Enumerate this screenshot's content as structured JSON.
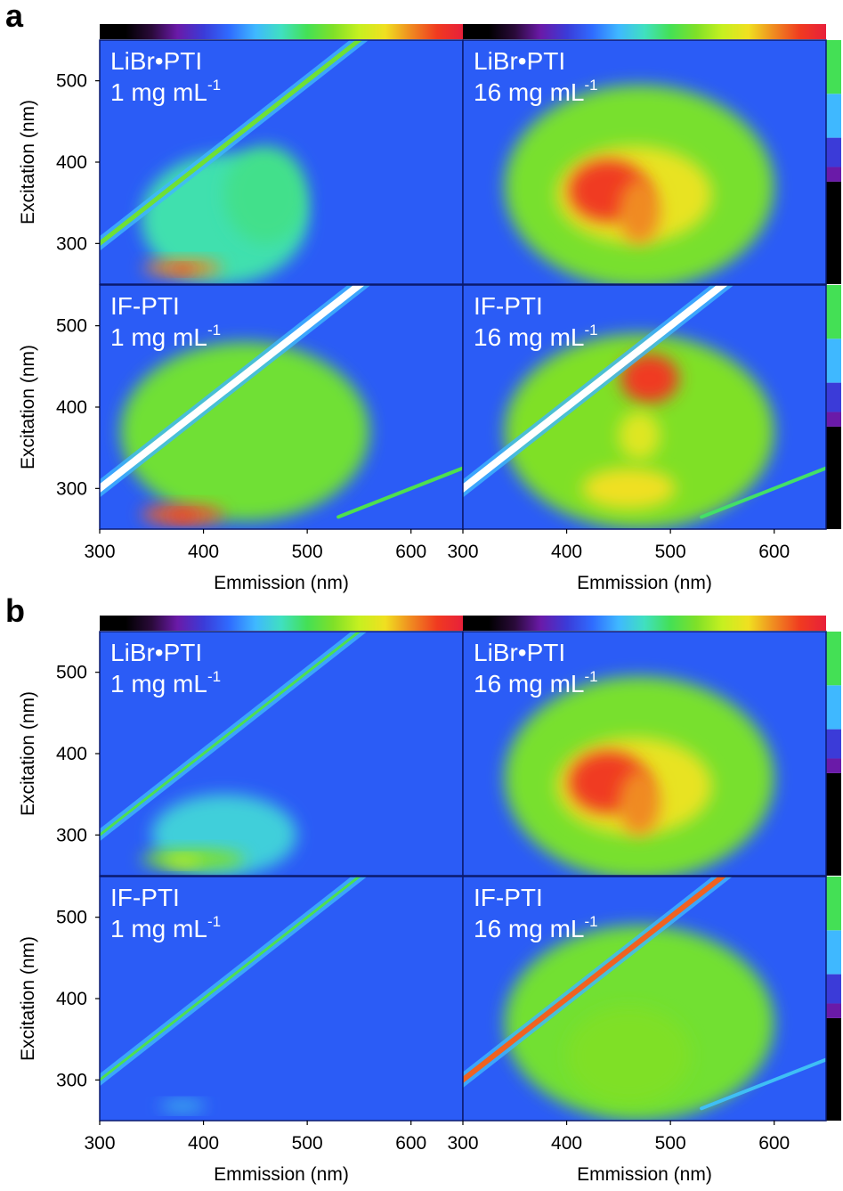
{
  "figure": {
    "colors": {
      "background": "#2b5cf6",
      "colorbar": [
        "#000000",
        "#000000",
        "#2a0a3a",
        "#6a1aa8",
        "#3b3bd8",
        "#2f6cff",
        "#3fb8ff",
        "#40e0c0",
        "#44e055",
        "#7fe028",
        "#c6f020",
        "#f0e020",
        "#f08a20",
        "#f03a20",
        "#e8203a"
      ]
    },
    "panels": [
      {
        "label": "a",
        "chart_data": [
          {
            "type": "heatmap",
            "title": "LiBr•PTI",
            "subtitle": "1 mg mL",
            "subtitle_sup": "-1",
            "xlabel": "",
            "ylabel": "Excitation (nm)",
            "xlim": [
              300,
              650
            ],
            "ylim": [
              250,
              550
            ],
            "xticks": [],
            "yticks": [
              300,
              400,
              500
            ],
            "scatter_line": {
              "intensity": 0.55,
              "width": 9
            },
            "second_order": {
              "intensity": 0.0
            },
            "regions": [
              {
                "cx": 420,
                "cy": 330,
                "rx": 80,
                "ry": 80,
                "intensity": 0.32
              },
              {
                "cx": 460,
                "cy": 360,
                "rx": 40,
                "ry": 60,
                "intensity": 0.36
              },
              {
                "cx": 380,
                "cy": 270,
                "rx": 38,
                "ry": 10,
                "intensity": 0.9
              },
              {
                "cx": 380,
                "cy": 268,
                "rx": 12,
                "ry": 5,
                "intensity": 1.0
              }
            ]
          },
          {
            "type": "heatmap",
            "title": "LiBr•PTI",
            "subtitle": "16 mg mL",
            "subtitle_sup": "-1",
            "xlabel": "",
            "ylabel": "",
            "xlim": [
              300,
              650
            ],
            "ylim": [
              250,
              550
            ],
            "xticks": [],
            "yticks": [],
            "scatter_line": {
              "intensity": 0.0,
              "width": 0
            },
            "second_order": {
              "intensity": 0.0
            },
            "regions": [
              {
                "cx": 470,
                "cy": 370,
                "rx": 130,
                "ry": 125,
                "intensity": 0.58
              },
              {
                "cx": 465,
                "cy": 360,
                "rx": 75,
                "ry": 60,
                "intensity": 0.8
              },
              {
                "cx": 440,
                "cy": 365,
                "rx": 38,
                "ry": 38,
                "intensity": 1.0
              },
              {
                "cx": 470,
                "cy": 340,
                "rx": 20,
                "ry": 40,
                "intensity": 0.9
              }
            ]
          },
          {
            "type": "heatmap",
            "title": "IF-PTI",
            "subtitle": "1 mg mL",
            "subtitle_sup": "-1",
            "xlabel": "Emmission (nm)",
            "ylabel": "Excitation (nm)",
            "xlim": [
              300,
              650
            ],
            "ylim": [
              250,
              550
            ],
            "xticks": [
              300,
              400,
              500,
              600
            ],
            "yticks": [
              300,
              400,
              500
            ],
            "scatter_line": {
              "intensity": 1.15,
              "width": 12
            },
            "second_order": {
              "intensity": 0.45
            },
            "regions": [
              {
                "cx": 440,
                "cy": 370,
                "rx": 120,
                "ry": 110,
                "intensity": 0.55
              },
              {
                "cx": 380,
                "cy": 268,
                "rx": 40,
                "ry": 12,
                "intensity": 0.95
              },
              {
                "cx": 380,
                "cy": 266,
                "rx": 14,
                "ry": 6,
                "intensity": 1.0
              }
            ]
          },
          {
            "type": "heatmap",
            "title": "IF-PTI",
            "subtitle": "16 mg mL",
            "subtitle_sup": "-1",
            "xlabel": "Emmission (nm)",
            "ylabel": "",
            "xlim": [
              300,
              650
            ],
            "ylim": [
              250,
              550
            ],
            "xticks": [
              300,
              400,
              500,
              600
            ],
            "yticks": [],
            "scatter_line": {
              "intensity": 1.15,
              "width": 12
            },
            "second_order": {
              "intensity": 0.4
            },
            "regions": [
              {
                "cx": 470,
                "cy": 370,
                "rx": 130,
                "ry": 120,
                "intensity": 0.6
              },
              {
                "cx": 480,
                "cy": 435,
                "rx": 28,
                "ry": 30,
                "intensity": 1.0
              },
              {
                "cx": 460,
                "cy": 300,
                "rx": 45,
                "ry": 25,
                "intensity": 0.82
              },
              {
                "cx": 470,
                "cy": 365,
                "rx": 20,
                "ry": 30,
                "intensity": 0.78
              }
            ]
          }
        ]
      },
      {
        "label": "b",
        "chart_data": [
          {
            "type": "heatmap",
            "title": "LiBr•PTI",
            "subtitle": "1 mg mL",
            "subtitle_sup": "-1",
            "xlabel": "",
            "ylabel": "Excitation (nm)",
            "xlim": [
              300,
              650
            ],
            "ylim": [
              250,
              550
            ],
            "xticks": [],
            "yticks": [
              300,
              400,
              500
            ],
            "scatter_line": {
              "intensity": 0.45,
              "width": 7
            },
            "second_order": {
              "intensity": 0.0
            },
            "regions": [
              {
                "cx": 420,
                "cy": 300,
                "rx": 70,
                "ry": 50,
                "intensity": 0.25
              },
              {
                "cx": 390,
                "cy": 270,
                "rx": 50,
                "ry": 12,
                "intensity": 0.6
              },
              {
                "cx": 380,
                "cy": 268,
                "rx": 18,
                "ry": 6,
                "intensity": 0.72
              }
            ]
          },
          {
            "type": "heatmap",
            "title": "LiBr•PTI",
            "subtitle": "16 mg mL",
            "subtitle_sup": "-1",
            "xlabel": "",
            "ylabel": "",
            "xlim": [
              300,
              650
            ],
            "ylim": [
              250,
              550
            ],
            "xticks": [],
            "yticks": [],
            "scatter_line": {
              "intensity": 0.0,
              "width": 0
            },
            "second_order": {
              "intensity": 0.0
            },
            "regions": [
              {
                "cx": 470,
                "cy": 370,
                "rx": 130,
                "ry": 125,
                "intensity": 0.58
              },
              {
                "cx": 465,
                "cy": 360,
                "rx": 75,
                "ry": 60,
                "intensity": 0.8
              },
              {
                "cx": 440,
                "cy": 365,
                "rx": 38,
                "ry": 38,
                "intensity": 1.0
              },
              {
                "cx": 470,
                "cy": 340,
                "rx": 20,
                "ry": 40,
                "intensity": 0.9
              }
            ]
          },
          {
            "type": "heatmap",
            "title": "IF-PTI",
            "subtitle": "1 mg mL",
            "subtitle_sup": "-1",
            "xlabel": "Emmission (nm)",
            "ylabel": "Excitation (nm)",
            "xlim": [
              300,
              650
            ],
            "ylim": [
              250,
              550
            ],
            "xticks": [
              300,
              400,
              500,
              600
            ],
            "yticks": [
              300,
              400,
              500
            ],
            "scatter_line": {
              "intensity": 0.45,
              "width": 7
            },
            "second_order": {
              "intensity": 0.0
            },
            "regions": [
              {
                "cx": 380,
                "cy": 268,
                "rx": 22,
                "ry": 6,
                "intensity": 0.22
              }
            ]
          },
          {
            "type": "heatmap",
            "title": "IF-PTI",
            "subtitle": "16 mg mL",
            "subtitle_sup": "-1",
            "xlabel": "Emmission (nm)",
            "ylabel": "",
            "xlim": [
              300,
              650
            ],
            "ylim": [
              250,
              550
            ],
            "xticks": [
              300,
              400,
              500,
              600
            ],
            "yticks": [],
            "scatter_line": {
              "intensity": 0.95,
              "width": 10
            },
            "second_order": {
              "intensity": 0.2
            },
            "regions": [
              {
                "cx": 470,
                "cy": 370,
                "rx": 130,
                "ry": 120,
                "intensity": 0.56
              },
              {
                "cx": 460,
                "cy": 330,
                "rx": 60,
                "ry": 60,
                "intensity": 0.6
              }
            ]
          }
        ]
      }
    ]
  }
}
